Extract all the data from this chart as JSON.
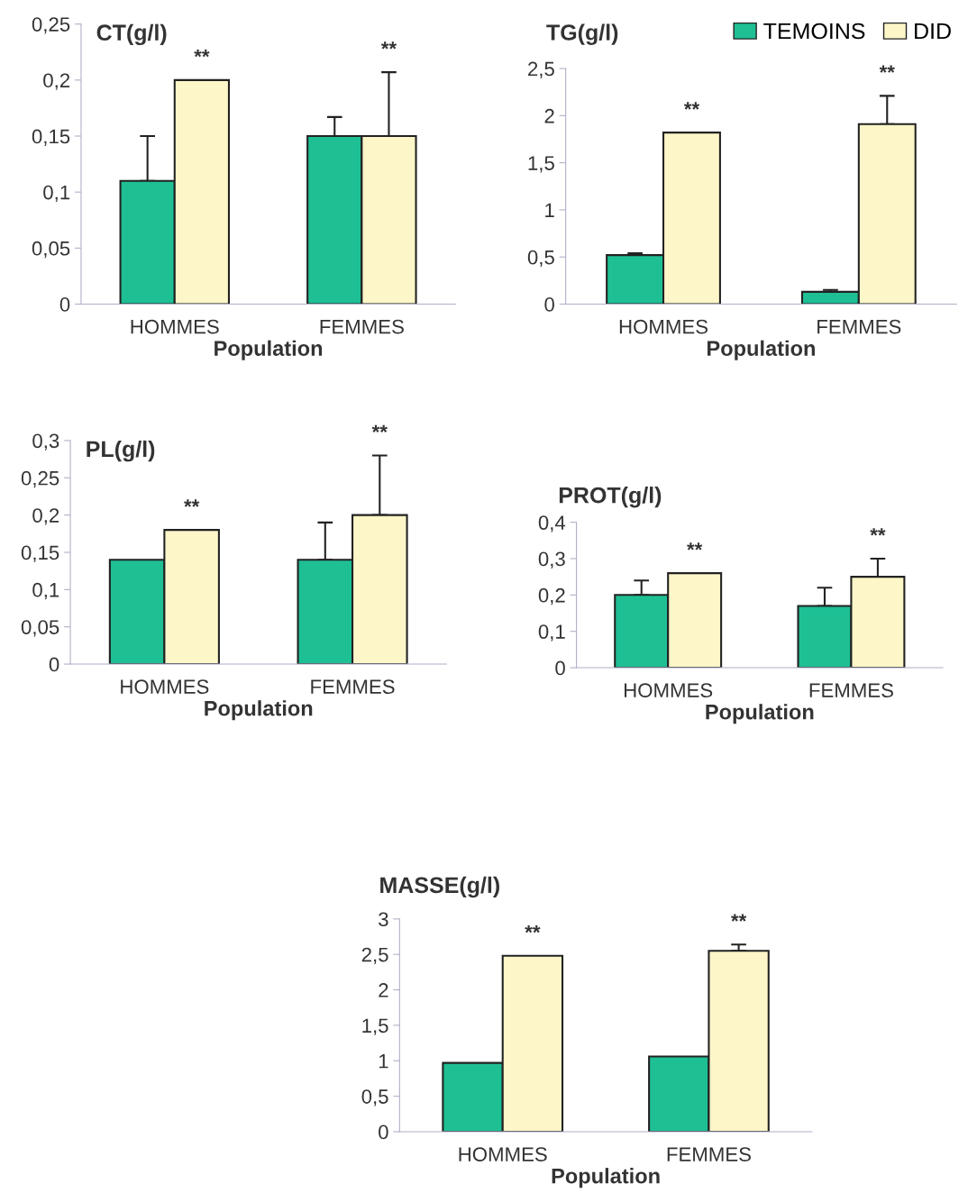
{
  "chart_data": [
    {
      "type": "bar",
      "title": "CT(g/l)",
      "xlabel": "Population",
      "categories": [
        "HOMMES",
        "FEMMES"
      ],
      "ylim": [
        0,
        0.25
      ],
      "yticks": [
        0,
        {
          "value": 0.05,
          "label": "0,05"
        },
        {
          "value": 0.1,
          "label": "0,1"
        },
        {
          "value": 0.15,
          "label": "0,15"
        },
        {
          "value": 0.2,
          "label": "0,2"
        },
        {
          "value": 0.25,
          "label": "0,25"
        }
      ],
      "grid": false,
      "series": [
        {
          "color": "#1fbf94",
          "values": [
            0.11,
            0.15
          ],
          "errors": [
            [
              0.11,
              0.15
            ],
            [
              0.15,
              0.167
            ]
          ]
        },
        {
          "color": "#fdf6c8",
          "values": [
            0.2,
            0.15
          ],
          "errors": [
            null,
            [
              0.15,
              0.207
            ]
          ]
        }
      ],
      "annotations": [
        "**",
        "**"
      ]
    },
    {
      "type": "bar",
      "title": "TG(g/l)",
      "xlabel": "Population",
      "categories": [
        "HOMMES",
        "FEMMES"
      ],
      "ylim": [
        0,
        2.5
      ],
      "yticks": [
        0,
        {
          "value": 0.5,
          "label": "0,5"
        },
        1,
        {
          "value": 1.5,
          "label": "1,5"
        },
        2,
        {
          "value": 2.5,
          "label": "2,5"
        }
      ],
      "grid": false,
      "legend": "top right",
      "series": [
        {
          "name": "TEMOINS",
          "color": "#1fbf94",
          "values": [
            0.52,
            0.13
          ],
          "errors": [
            [
              0.52,
              0.54
            ],
            [
              0.13,
              0.15
            ]
          ]
        },
        {
          "name": "DID",
          "color": "#fdf6c8",
          "values": [
            1.82,
            1.91
          ],
          "errors": [
            null,
            [
              1.91,
              2.21
            ]
          ]
        }
      ],
      "annotations": [
        "**",
        "**"
      ]
    },
    {
      "type": "bar",
      "title": "PL(g/l)",
      "xlabel": "Population",
      "categories": [
        "HOMMES",
        "FEMMES"
      ],
      "ylim": [
        0,
        0.3
      ],
      "yticks": [
        0,
        {
          "value": 0.05,
          "label": "0,05"
        },
        {
          "value": 0.1,
          "label": "0,1"
        },
        {
          "value": 0.15,
          "label": "0,15"
        },
        {
          "value": 0.2,
          "label": "0,2"
        },
        {
          "value": 0.25,
          "label": "0,25"
        },
        {
          "value": 0.3,
          "label": "0,3"
        }
      ],
      "grid": false,
      "series": [
        {
          "color": "#1fbf94",
          "values": [
            0.14,
            0.14
          ],
          "errors": [
            null,
            [
              0.14,
              0.19
            ]
          ]
        },
        {
          "color": "#fdf6c8",
          "values": [
            0.18,
            0.2
          ],
          "errors": [
            null,
            [
              0.2,
              0.28
            ]
          ]
        }
      ],
      "annotations": [
        "**",
        "**"
      ]
    },
    {
      "type": "bar",
      "title": "PROT(g/l)",
      "xlabel": "Population",
      "categories": [
        "HOMMES",
        "FEMMES"
      ],
      "ylim": [
        0,
        0.4
      ],
      "yticks": [
        0,
        {
          "value": 0.1,
          "label": "0,1"
        },
        {
          "value": 0.2,
          "label": "0,2"
        },
        {
          "value": 0.3,
          "label": "0,3"
        },
        {
          "value": 0.4,
          "label": "0,4"
        }
      ],
      "grid": false,
      "series": [
        {
          "color": "#1fbf94",
          "values": [
            0.2,
            0.17
          ],
          "errors": [
            [
              0.2,
              0.24
            ],
            [
              0.17,
              0.22
            ]
          ]
        },
        {
          "color": "#fdf6c8",
          "values": [
            0.26,
            0.25
          ],
          "errors": [
            null,
            [
              0.25,
              0.3
            ]
          ]
        }
      ],
      "annotations": [
        "**",
        "**"
      ]
    },
    {
      "type": "bar",
      "title": "MASSE(g/l)",
      "xlabel": "Population",
      "categories": [
        "HOMMES",
        "FEMMES"
      ],
      "ylim": [
        0,
        3
      ],
      "yticks": [
        0,
        {
          "value": 0.5,
          "label": "0,5"
        },
        1,
        {
          "value": 1.5,
          "label": "1,5"
        },
        2,
        {
          "value": 2.5,
          "label": "2,5"
        },
        3
      ],
      "grid": false,
      "series": [
        {
          "color": "#1fbf94",
          "values": [
            0.97,
            1.06
          ]
        },
        {
          "color": "#fdf6c8",
          "values": [
            2.48,
            2.55
          ],
          "errors": [
            null,
            [
              2.55,
              2.64
            ]
          ]
        }
      ],
      "annotations": [
        "**",
        "**"
      ]
    }
  ]
}
